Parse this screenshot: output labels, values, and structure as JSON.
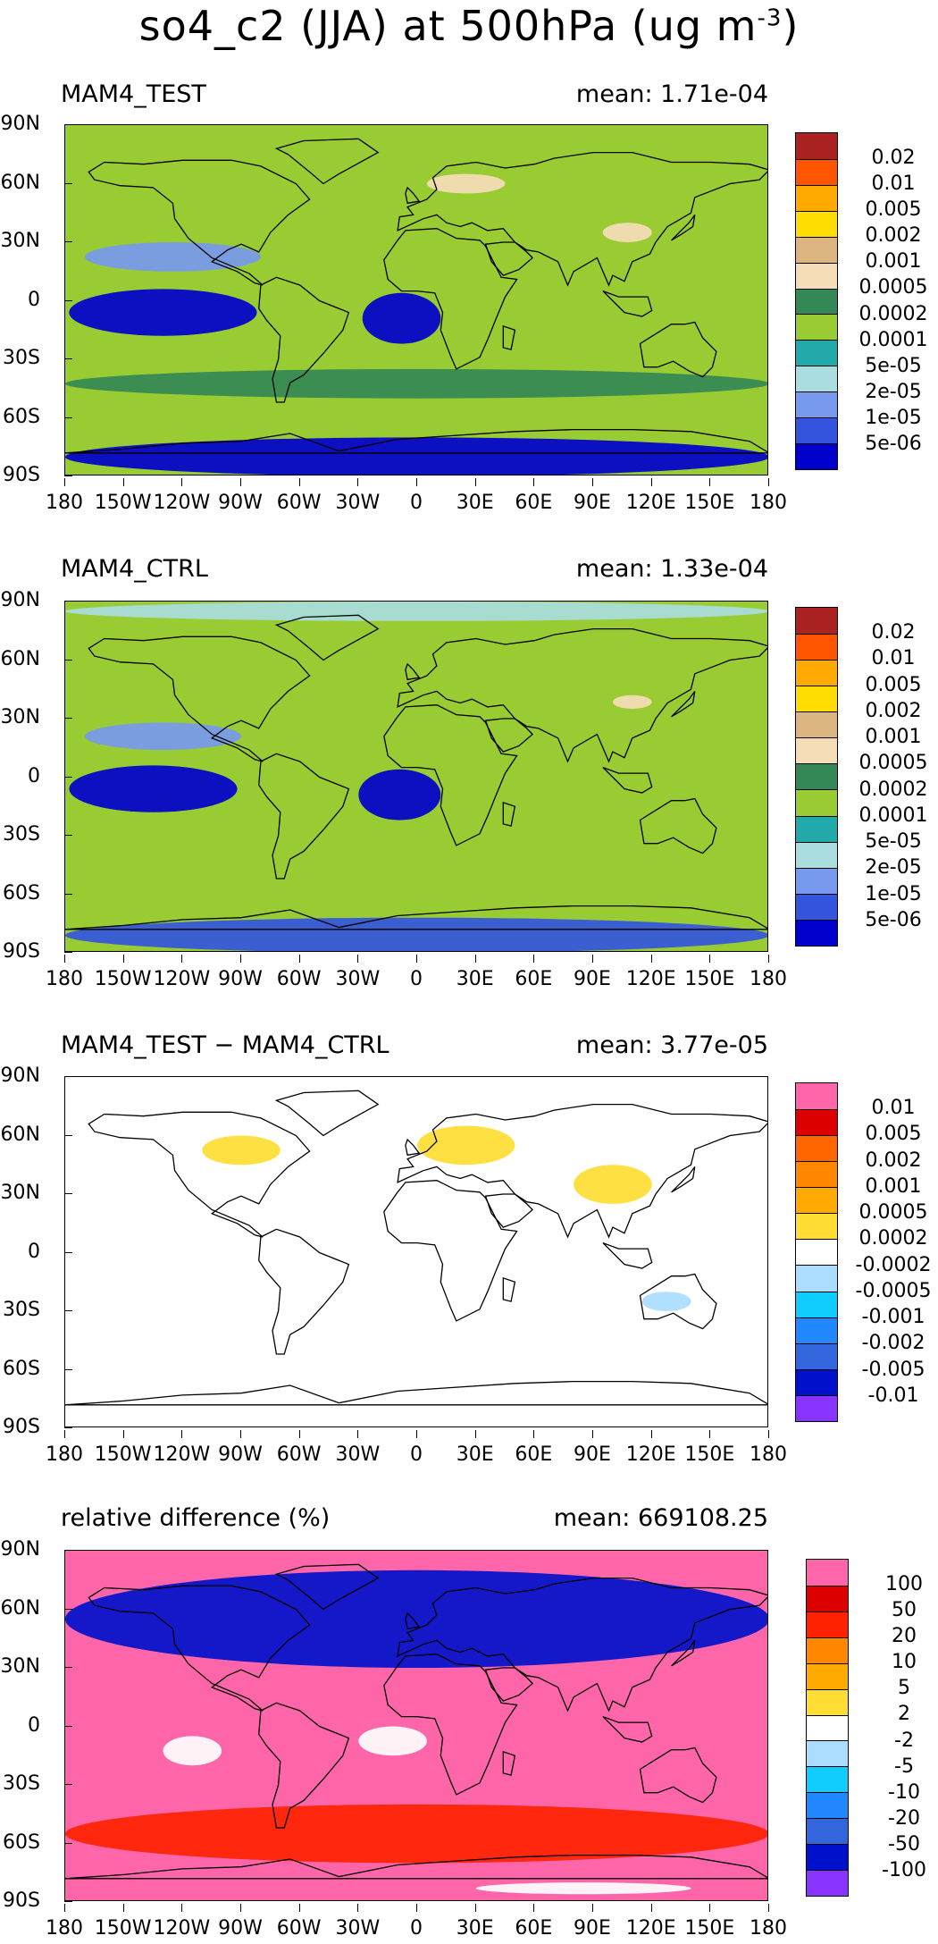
{
  "title": {
    "main": "so4_c2 (JJA) at 500hPa (ug m",
    "unit_exponent": "-3",
    "close": ")"
  },
  "axes": {
    "lat_labels": [
      "90N",
      "60N",
      "30N",
      "0",
      "30S",
      "60S",
      "90S"
    ],
    "lon_labels": [
      "180",
      "150W",
      "120W",
      "90W",
      "60W",
      "30W",
      "0",
      "30E",
      "60E",
      "90E",
      "120E",
      "150E",
      "180"
    ]
  },
  "scales": {
    "abs": {
      "colors": [
        "#0000cc",
        "#3355dd",
        "#7799ee",
        "#aadddd",
        "#22aaaa",
        "#99cc33",
        "#338855",
        "#f5ddb8",
        "#ddb580",
        "#ffdd00",
        "#ffaa00",
        "#ff5500",
        "#aa2222"
      ],
      "labels": [
        "5e-06",
        "1e-05",
        "2e-05",
        "5e-05",
        "0.0001",
        "0.0002",
        "0.0005",
        "0.001",
        "0.002",
        "0.005",
        "0.01",
        "0.02"
      ]
    },
    "diff": {
      "colors": [
        "#8833ff",
        "#0011cc",
        "#3366dd",
        "#2288ff",
        "#11ccff",
        "#aaddff",
        "#ffffff",
        "#ffdd33",
        "#ffaa00",
        "#ff8800",
        "#ff6600",
        "#dd0000",
        "#ff66aa"
      ],
      "labels": [
        "-0.01",
        "-0.005",
        "-0.002",
        "-0.001",
        "-0.0005",
        "-0.0002",
        "0.0002",
        "0.0005",
        "0.001",
        "0.002",
        "0.005",
        "0.01"
      ]
    },
    "rel": {
      "colors": [
        "#8833ff",
        "#0011cc",
        "#3366dd",
        "#2288ff",
        "#11ccff",
        "#aaddff",
        "#ffffff",
        "#ffdd33",
        "#ffaa00",
        "#ff8800",
        "#ff2200",
        "#dd0000",
        "#ff66aa"
      ],
      "labels": [
        "-100",
        "-50",
        "-20",
        "-10",
        "-5",
        "-2",
        "2",
        "5",
        "10",
        "20",
        "50",
        "100"
      ]
    }
  },
  "panels": [
    {
      "id": "test",
      "label": "MAM4_TEST",
      "mean": "mean: 1.71e-04",
      "scale": "abs"
    },
    {
      "id": "ctrl",
      "label": "MAM4_CTRL",
      "mean": "mean: 1.33e-04",
      "scale": "abs"
    },
    {
      "id": "diff",
      "label": "MAM4_TEST − MAM4_CTRL",
      "mean": "mean: 3.77e-05",
      "scale": "diff"
    },
    {
      "id": "rel",
      "label": "relative difference (%)",
      "mean": "mean: 669108.25",
      "scale": "rel"
    }
  ],
  "chart_data": [
    {
      "type": "heatmap",
      "title": "MAM4_TEST",
      "field": "so4_c2 JJA 500hPa",
      "units": "ug m-3",
      "mean": 0.000171,
      "x_range": [
        -180,
        180
      ],
      "y_range": [
        -90,
        90
      ],
      "levels": [
        5e-06,
        1e-05,
        2e-05,
        5e-05,
        0.0001,
        0.0002,
        0.0005,
        0.001,
        0.002,
        0.005,
        0.01,
        0.02
      ],
      "features": [
        {
          "name": "background",
          "level_index": 5
        },
        {
          "name": "tropical_pacific_low",
          "lon": [
            -178,
            -82
          ],
          "lat": [
            -18,
            6
          ],
          "level_index": 0
        },
        {
          "name": "tropical_atlantic_low",
          "lon": [
            -28,
            12
          ],
          "lat": [
            -22,
            4
          ],
          "level_index": 0
        },
        {
          "name": "north_pacific_low",
          "lon": [
            -170,
            -80
          ],
          "lat": [
            15,
            30
          ],
          "level_index": 2
        },
        {
          "name": "antarctic_low",
          "lon": [
            -180,
            180
          ],
          "lat": [
            -90,
            -70
          ],
          "level_index": 0
        },
        {
          "name": "siberia_high",
          "lon": [
            5,
            45
          ],
          "lat": [
            55,
            65
          ],
          "level_index": 7
        },
        {
          "name": "central_asia_high",
          "lon": [
            95,
            120
          ],
          "lat": [
            30,
            40
          ],
          "level_index": 7
        },
        {
          "name": "southern_ocean_band",
          "lon": [
            -180,
            180
          ],
          "lat": [
            -50,
            -35
          ],
          "level_index": 6
        }
      ]
    },
    {
      "type": "heatmap",
      "title": "MAM4_CTRL",
      "field": "so4_c2 JJA 500hPa",
      "units": "ug m-3",
      "mean": 0.000133,
      "x_range": [
        -180,
        180
      ],
      "y_range": [
        -90,
        90
      ],
      "levels": [
        5e-06,
        1e-05,
        2e-05,
        5e-05,
        0.0001,
        0.0002,
        0.0005,
        0.001,
        0.002,
        0.005,
        0.01,
        0.02
      ],
      "features": [
        {
          "name": "background",
          "level_index": 5
        },
        {
          "name": "tropical_pacific_low",
          "lon": [
            -178,
            -92
          ],
          "lat": [
            -18,
            6
          ],
          "level_index": 0
        },
        {
          "name": "tropical_atlantic_low",
          "lon": [
            -30,
            12
          ],
          "lat": [
            -22,
            4
          ],
          "level_index": 0
        },
        {
          "name": "north_pacific_low",
          "lon": [
            -170,
            -90
          ],
          "lat": [
            14,
            28
          ],
          "level_index": 2
        },
        {
          "name": "antarctic_low",
          "lon": [
            -180,
            180
          ],
          "lat": [
            -90,
            -72
          ],
          "level_index": 1
        },
        {
          "name": "arctic_low",
          "lon": [
            -180,
            180
          ],
          "lat": [
            80,
            90
          ],
          "level_index": 3
        },
        {
          "name": "central_asia_high",
          "lon": [
            100,
            120
          ],
          "lat": [
            35,
            42
          ],
          "level_index": 7
        }
      ]
    },
    {
      "type": "heatmap",
      "title": "MAM4_TEST - MAM4_CTRL",
      "field": "so4_c2 JJA 500hPa difference",
      "units": "ug m-3",
      "mean": 3.77e-05,
      "x_range": [
        -180,
        180
      ],
      "y_range": [
        -90,
        90
      ],
      "levels": [
        -0.01,
        -0.005,
        -0.002,
        -0.001,
        -0.0005,
        -0.0002,
        0.0002,
        0.0005,
        0.001,
        0.002,
        0.005,
        0.01
      ],
      "features": [
        {
          "name": "background",
          "level_index": 6
        },
        {
          "name": "europe_increase",
          "lon": [
            0,
            50
          ],
          "lat": [
            45,
            65
          ],
          "level_index": 7
        },
        {
          "name": "central_asia_increase",
          "lon": [
            80,
            120
          ],
          "lat": [
            25,
            45
          ],
          "level_index": 7
        },
        {
          "name": "north_america_increase",
          "lon": [
            -110,
            -70
          ],
          "lat": [
            45,
            60
          ],
          "level_index": 7
        },
        {
          "name": "australia_decrease",
          "lon": [
            115,
            140
          ],
          "lat": [
            -30,
            -20
          ],
          "level_index": 5
        }
      ]
    },
    {
      "type": "heatmap",
      "title": "relative difference (%)",
      "field": "so4_c2 JJA 500hPa relative difference",
      "units": "%",
      "mean": 669108.25,
      "x_range": [
        -180,
        180
      ],
      "y_range": [
        -90,
        90
      ],
      "levels": [
        -100,
        -50,
        -20,
        -10,
        -5,
        -2,
        2,
        5,
        10,
        20,
        50,
        100
      ],
      "features": [
        {
          "name": "background",
          "level_index": 12
        },
        {
          "name": "tropical_pacific_zero",
          "lon": [
            -130,
            -100
          ],
          "lat": [
            -20,
            -5
          ],
          "level_index": 6
        },
        {
          "name": "tropical_atlantic_zero",
          "lon": [
            -30,
            5
          ],
          "lat": [
            -15,
            0
          ],
          "level_index": 6
        },
        {
          "name": "antarctic_zero",
          "lon": [
            30,
            140
          ],
          "lat": [
            -86,
            -80
          ],
          "level_index": 6
        },
        {
          "name": "southern_ocean_mixed",
          "lon": [
            -180,
            180
          ],
          "lat": [
            -70,
            -40
          ],
          "level_index": 10
        },
        {
          "name": "northern_mixed",
          "lon": [
            -180,
            180
          ],
          "lat": [
            30,
            80
          ],
          "level_index": 1
        }
      ]
    }
  ]
}
